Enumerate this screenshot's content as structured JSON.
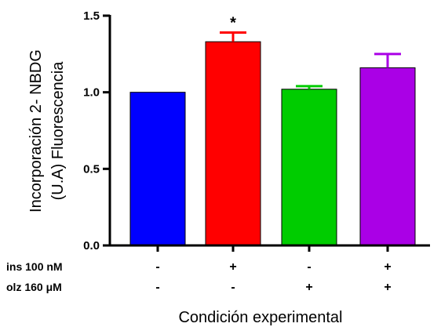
{
  "chart_data": {
    "type": "bar",
    "ylabel_lines": [
      "Incorporación 2- NBDG",
      "(U.A) Fluorescencia"
    ],
    "xlabel": "Condición experimental",
    "ylim": [
      0,
      1.5
    ],
    "yticks": [
      "0.0",
      "0.5",
      "1.0",
      "1.5"
    ],
    "ytick_values": [
      0,
      0.5,
      1.0,
      1.5
    ],
    "grid": false,
    "legend": "none",
    "bars": [
      {
        "value": 1.0,
        "error": 0,
        "color": "#0000ff",
        "significance": ""
      },
      {
        "value": 1.33,
        "error": 0.06,
        "color": "#ff0000",
        "significance": "*"
      },
      {
        "value": 1.02,
        "error": 0.02,
        "color": "#00cc00",
        "significance": ""
      },
      {
        "value": 1.16,
        "error": 0.09,
        "color": "#aa00e6",
        "significance": ""
      }
    ],
    "condition_rows": [
      {
        "label": "ins 100 nM",
        "signs": [
          "-",
          "+",
          "-",
          "+"
        ]
      },
      {
        "label": "olz 160 μM",
        "signs": [
          "-",
          "-",
          "+",
          "+"
        ]
      }
    ]
  }
}
